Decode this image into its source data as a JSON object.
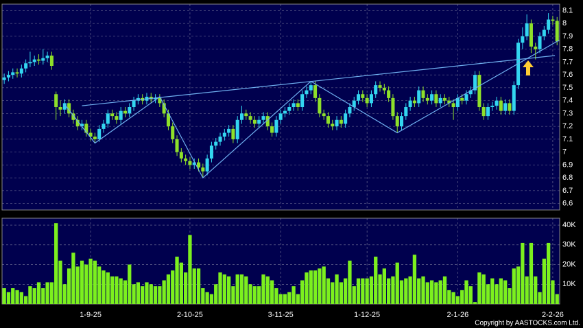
{
  "chart_data": {
    "type": "candlestick",
    "candles": [
      [
        7.56,
        7.61,
        7.53,
        7.58
      ],
      [
        7.58,
        7.63,
        7.55,
        7.6
      ],
      [
        7.6,
        7.65,
        7.57,
        7.62
      ],
      [
        7.62,
        7.65,
        7.58,
        7.61
      ],
      [
        7.61,
        7.68,
        7.58,
        7.65
      ],
      [
        7.65,
        7.72,
        7.62,
        7.69
      ],
      [
        7.69,
        7.78,
        7.66,
        7.7
      ],
      [
        7.7,
        7.75,
        7.67,
        7.72
      ],
      [
        7.72,
        7.76,
        7.68,
        7.71
      ],
      [
        7.71,
        7.8,
        7.68,
        7.73
      ],
      [
        7.73,
        7.78,
        7.7,
        7.75
      ],
      [
        7.75,
        7.78,
        7.64,
        7.67
      ],
      [
        7.45,
        7.47,
        7.25,
        7.35
      ],
      [
        7.35,
        7.4,
        7.28,
        7.33
      ],
      [
        7.33,
        7.41,
        7.3,
        7.38
      ],
      [
        7.38,
        7.41,
        7.27,
        7.3
      ],
      [
        7.3,
        7.33,
        7.22,
        7.25
      ],
      [
        7.25,
        7.28,
        7.17,
        7.2
      ],
      [
        7.2,
        7.25,
        7.17,
        7.22
      ],
      [
        7.22,
        7.25,
        7.12,
        7.15
      ],
      [
        7.15,
        7.18,
        7.09,
        7.12
      ],
      [
        7.12,
        7.15,
        7.07,
        7.1
      ],
      [
        7.1,
        7.21,
        7.08,
        7.18
      ],
      [
        7.18,
        7.25,
        7.15,
        7.22
      ],
      [
        7.22,
        7.33,
        7.19,
        7.3
      ],
      [
        7.3,
        7.33,
        7.25,
        7.28
      ],
      [
        7.28,
        7.31,
        7.22,
        7.25
      ],
      [
        7.25,
        7.35,
        7.22,
        7.32
      ],
      [
        7.32,
        7.35,
        7.27,
        7.3
      ],
      [
        7.3,
        7.38,
        7.27,
        7.35
      ],
      [
        7.35,
        7.43,
        7.32,
        7.4
      ],
      [
        7.4,
        7.45,
        7.37,
        7.42
      ],
      [
        7.42,
        7.45,
        7.37,
        7.4
      ],
      [
        7.4,
        7.46,
        7.37,
        7.43
      ],
      [
        7.43,
        7.46,
        7.38,
        7.41
      ],
      [
        7.41,
        7.45,
        7.38,
        7.42
      ],
      [
        7.42,
        7.45,
        7.35,
        7.38
      ],
      [
        7.38,
        7.41,
        7.27,
        7.3
      ],
      [
        7.3,
        7.33,
        7.17,
        7.2
      ],
      [
        7.2,
        7.23,
        7.07,
        7.1
      ],
      [
        7.1,
        7.13,
        6.97,
        7.0
      ],
      [
        7.0,
        7.03,
        6.92,
        6.95
      ],
      [
        6.95,
        6.98,
        6.9,
        6.93
      ],
      [
        6.93,
        6.96,
        6.87,
        6.9
      ],
      [
        6.9,
        6.95,
        6.87,
        6.92
      ],
      [
        6.92,
        6.95,
        6.85,
        6.88
      ],
      [
        6.88,
        6.91,
        6.8,
        6.85
      ],
      [
        6.85,
        6.98,
        6.82,
        6.95
      ],
      [
        6.95,
        7.08,
        6.92,
        7.05
      ],
      [
        7.05,
        7.11,
        7.02,
        7.08
      ],
      [
        7.08,
        7.15,
        7.05,
        7.12
      ],
      [
        7.12,
        7.18,
        7.09,
        7.15
      ],
      [
        7.15,
        7.21,
        7.12,
        7.18
      ],
      [
        7.18,
        7.21,
        7.07,
        7.1
      ],
      [
        7.1,
        7.28,
        7.07,
        7.25
      ],
      [
        7.25,
        7.36,
        7.22,
        7.3
      ],
      [
        7.3,
        7.33,
        7.25,
        7.28
      ],
      [
        7.28,
        7.31,
        7.22,
        7.25
      ],
      [
        7.25,
        7.28,
        7.19,
        7.22
      ],
      [
        7.22,
        7.28,
        7.19,
        7.25
      ],
      [
        7.25,
        7.31,
        7.22,
        7.28
      ],
      [
        7.28,
        7.31,
        7.17,
        7.2
      ],
      [
        7.2,
        7.23,
        7.12,
        7.15
      ],
      [
        7.15,
        7.28,
        7.12,
        7.25
      ],
      [
        7.25,
        7.33,
        7.22,
        7.3
      ],
      [
        7.3,
        7.35,
        7.27,
        7.32
      ],
      [
        7.32,
        7.38,
        7.29,
        7.35
      ],
      [
        7.35,
        7.41,
        7.32,
        7.38
      ],
      [
        7.38,
        7.41,
        7.32,
        7.35
      ],
      [
        7.35,
        7.48,
        7.32,
        7.45
      ],
      [
        7.45,
        7.51,
        7.42,
        7.48
      ],
      [
        7.48,
        7.55,
        7.45,
        7.52
      ],
      [
        7.52,
        7.55,
        7.39,
        7.42
      ],
      [
        7.42,
        7.45,
        7.27,
        7.3
      ],
      [
        7.3,
        7.33,
        7.25,
        7.28
      ],
      [
        7.28,
        7.31,
        7.19,
        7.22
      ],
      [
        7.22,
        7.25,
        7.17,
        7.2
      ],
      [
        7.2,
        7.28,
        7.17,
        7.25
      ],
      [
        7.25,
        7.28,
        7.19,
        7.22
      ],
      [
        7.22,
        7.33,
        7.19,
        7.3
      ],
      [
        7.3,
        7.38,
        7.27,
        7.35
      ],
      [
        7.35,
        7.43,
        7.32,
        7.4
      ],
      [
        7.4,
        7.48,
        7.37,
        7.45
      ],
      [
        7.45,
        7.48,
        7.39,
        7.42
      ],
      [
        7.42,
        7.45,
        7.35,
        7.38
      ],
      [
        7.38,
        7.48,
        7.35,
        7.45
      ],
      [
        7.45,
        7.55,
        7.42,
        7.52
      ],
      [
        7.52,
        7.55,
        7.47,
        7.5
      ],
      [
        7.5,
        7.53,
        7.45,
        7.48
      ],
      [
        7.48,
        7.51,
        7.39,
        7.42
      ],
      [
        7.42,
        7.45,
        7.25,
        7.28
      ],
      [
        7.28,
        7.31,
        7.15,
        7.2
      ],
      [
        7.2,
        7.31,
        7.17,
        7.28
      ],
      [
        7.28,
        7.38,
        7.25,
        7.35
      ],
      [
        7.35,
        7.43,
        7.32,
        7.4
      ],
      [
        7.4,
        7.43,
        7.35,
        7.38
      ],
      [
        7.38,
        7.51,
        7.35,
        7.48
      ],
      [
        7.48,
        7.51,
        7.39,
        7.42
      ],
      [
        7.42,
        7.45,
        7.37,
        7.4
      ],
      [
        7.4,
        7.48,
        7.37,
        7.45
      ],
      [
        7.45,
        7.48,
        7.35,
        7.38
      ],
      [
        7.38,
        7.45,
        7.35,
        7.42
      ],
      [
        7.42,
        7.45,
        7.37,
        7.4
      ],
      [
        7.4,
        7.43,
        7.35,
        7.38
      ],
      [
        7.38,
        7.41,
        7.25,
        7.35
      ],
      [
        7.35,
        7.45,
        7.32,
        7.42
      ],
      [
        7.42,
        7.45,
        7.37,
        7.4
      ],
      [
        7.4,
        7.48,
        7.37,
        7.45
      ],
      [
        7.45,
        7.51,
        7.42,
        7.48
      ],
      [
        7.48,
        7.63,
        7.45,
        7.6
      ],
      [
        7.6,
        7.63,
        7.32,
        7.35
      ],
      [
        7.35,
        7.38,
        7.25,
        7.28
      ],
      [
        7.28,
        7.38,
        7.25,
        7.35
      ],
      [
        7.35,
        7.39,
        7.32,
        7.36
      ],
      [
        7.36,
        7.43,
        7.33,
        7.4
      ],
      [
        7.4,
        7.43,
        7.29,
        7.32
      ],
      [
        7.32,
        7.41,
        7.29,
        7.38
      ],
      [
        7.38,
        7.41,
        7.29,
        7.32
      ],
      [
        7.32,
        7.55,
        7.29,
        7.52
      ],
      [
        7.52,
        7.88,
        7.49,
        7.85
      ],
      [
        7.85,
        7.97,
        7.8,
        7.9
      ],
      [
        7.9,
        8.07,
        7.87,
        8.0
      ],
      [
        8.0,
        8.03,
        7.77,
        7.82
      ],
      [
        7.82,
        7.85,
        7.72,
        7.8
      ],
      [
        7.8,
        7.93,
        7.77,
        7.9
      ],
      [
        7.9,
        7.98,
        7.87,
        7.95
      ],
      [
        7.95,
        8.08,
        7.92,
        8.03
      ],
      [
        8.03,
        8.06,
        7.99,
        8.02
      ],
      [
        8.02,
        8.05,
        7.83,
        7.86
      ]
    ],
    "volume": [
      8000,
      6000,
      8000,
      7000,
      6000,
      4000,
      9000,
      8000,
      11000,
      8000,
      11000,
      11000,
      41000,
      22000,
      10000,
      18000,
      26000,
      19000,
      22000,
      20000,
      23000,
      22000,
      19000,
      17000,
      16000,
      14000,
      14000,
      13000,
      12000,
      20000,
      10000,
      11000,
      9000,
      11000,
      10000,
      9000,
      9000,
      12000,
      15000,
      17000,
      24000,
      21000,
      16000,
      35000,
      18000,
      18000,
      8000,
      6000,
      5000,
      10000,
      16000,
      15000,
      14000,
      9000,
      15000,
      15000,
      14000,
      10000,
      9000,
      9000,
      15000,
      14000,
      12000,
      8000,
      5000,
      5000,
      6000,
      9000,
      5000,
      12000,
      16000,
      17000,
      17000,
      18000,
      19000,
      13000,
      11000,
      15000,
      11000,
      13000,
      22000,
      9000,
      13000,
      13000,
      13000,
      14000,
      24000,
      15000,
      18000,
      13000,
      14000,
      21000,
      12000,
      13000,
      14000,
      25000,
      13000,
      14000,
      11000,
      12000,
      11000,
      12000,
      14000,
      7000,
      6000,
      4000,
      7000,
      12000,
      9000,
      1000,
      16000,
      15000,
      10000,
      13000,
      10000,
      13000,
      12000,
      8000,
      18000,
      19000,
      31000,
      14000,
      31000,
      14000,
      6000,
      23000,
      31000,
      12000,
      5000
    ],
    "xlim": [
      -0.5,
      128.6
    ],
    "xticks": [
      {
        "value": 20,
        "label": "1-9-25"
      },
      {
        "value": 43,
        "label": "2-10-25"
      },
      {
        "value": 64,
        "label": "3-11-25"
      },
      {
        "value": 84,
        "label": "1-12-25"
      },
      {
        "value": 105,
        "label": "2-1-26"
      },
      {
        "value": 127,
        "label": "2-2-26"
      }
    ],
    "ylim": [
      6.55,
      8.15
    ],
    "yticks": [
      6.6,
      6.7,
      6.8,
      6.9,
      7,
      7.1,
      7.2,
      7.3,
      7.4,
      7.5,
      7.6,
      7.7,
      7.8,
      7.9,
      8,
      8.1
    ],
    "volume_ylim": [
      0,
      43500
    ],
    "volume_yticks": [
      {
        "value": 10000,
        "label": "10K"
      },
      {
        "value": 20000,
        "label": "20K"
      },
      {
        "value": 30000,
        "label": "30K"
      },
      {
        "value": 40000,
        "label": "40K"
      }
    ],
    "grid": true,
    "up_color": "#33d6f0",
    "down_color": "#8ee02a",
    "volume_color": "#7cf01e",
    "trend_color": "#6fb0f0",
    "trend_lines": [
      {
        "points": [
          [
            18,
            7.36
          ],
          [
            127.5,
            7.75
          ]
        ]
      },
      {
        "points": [
          [
            14,
            7.37
          ],
          [
            21,
            7.07
          ],
          [
            36,
            7.43
          ],
          [
            46,
            6.8
          ],
          [
            71,
            7.55
          ],
          [
            91,
            7.15
          ],
          [
            128.5,
            7.87
          ]
        ]
      }
    ]
  },
  "copyright": "Copyright by AASTOCKS.com Ltd."
}
